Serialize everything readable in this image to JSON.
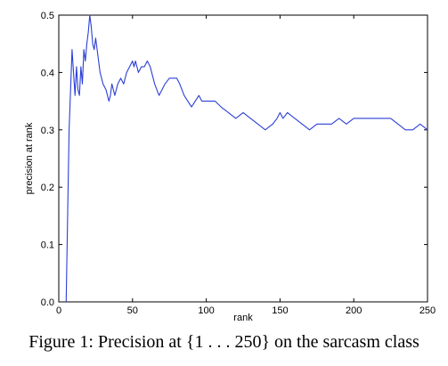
{
  "figure": {
    "caption_prefix": "Figure 1: Precision at ",
    "caption_math": "{1 . . . 250}",
    "caption_suffix": " on the sarcasm class"
  },
  "chart_data": {
    "type": "line",
    "xlabel": "rank",
    "ylabel": "precision at rank",
    "xlim": [
      0,
      250
    ],
    "ylim": [
      0.0,
      0.5
    ],
    "xticks": [
      0,
      50,
      100,
      150,
      200,
      250
    ],
    "yticks": [
      0.0,
      0.1,
      0.2,
      0.3,
      0.4,
      0.5
    ],
    "xtick_labels": [
      "0",
      "50",
      "100",
      "150",
      "200",
      "250"
    ],
    "ytick_labels": [
      "0.0",
      "0.1",
      "0.2",
      "0.3",
      "0.4",
      "0.5"
    ],
    "grid": false,
    "line_color": "#2b3fd6",
    "series": [
      {
        "x": [
          5,
          7,
          9,
          10,
          11,
          12,
          13,
          14,
          15,
          16,
          17,
          18,
          19,
          20,
          21,
          22,
          23,
          24,
          25,
          26,
          27,
          28,
          30,
          32,
          34,
          35,
          36,
          38,
          40,
          42,
          44,
          46,
          48,
          50,
          51,
          52,
          54,
          56,
          58,
          60,
          62,
          65,
          68,
          70,
          72,
          75,
          78,
          80,
          82,
          85,
          90,
          95,
          97,
          100,
          103,
          106,
          110,
          115,
          120,
          125,
          130,
          135,
          140,
          145,
          148,
          150,
          152,
          155,
          160,
          165,
          170,
          175,
          180,
          185,
          190,
          195,
          200,
          205,
          210,
          215,
          220,
          225,
          230,
          235,
          240,
          245,
          250
        ],
        "y": [
          0.0,
          0.3,
          0.44,
          0.4,
          0.36,
          0.41,
          0.37,
          0.36,
          0.41,
          0.38,
          0.44,
          0.42,
          0.45,
          0.47,
          0.5,
          0.48,
          0.45,
          0.44,
          0.46,
          0.44,
          0.42,
          0.4,
          0.38,
          0.37,
          0.35,
          0.36,
          0.38,
          0.36,
          0.38,
          0.39,
          0.38,
          0.4,
          0.41,
          0.42,
          0.41,
          0.42,
          0.4,
          0.41,
          0.41,
          0.42,
          0.41,
          0.38,
          0.36,
          0.37,
          0.38,
          0.39,
          0.39,
          0.39,
          0.38,
          0.36,
          0.34,
          0.36,
          0.35,
          0.35,
          0.35,
          0.35,
          0.34,
          0.33,
          0.32,
          0.33,
          0.32,
          0.31,
          0.3,
          0.31,
          0.32,
          0.33,
          0.32,
          0.33,
          0.32,
          0.31,
          0.3,
          0.31,
          0.31,
          0.31,
          0.32,
          0.31,
          0.32,
          0.32,
          0.32,
          0.32,
          0.32,
          0.32,
          0.31,
          0.3,
          0.3,
          0.31,
          0.3
        ]
      }
    ]
  }
}
